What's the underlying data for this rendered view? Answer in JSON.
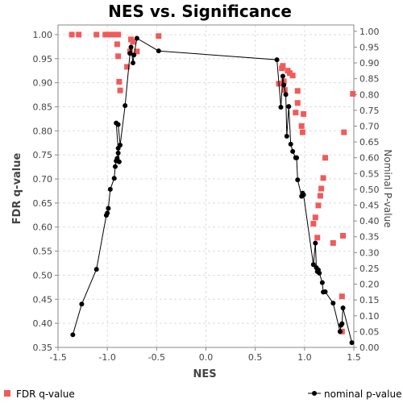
{
  "chart_data": {
    "type": "scatter",
    "title": "NES vs. Significance",
    "xlabel": "NES",
    "ylabel": "FDR q-value",
    "y2label": "Nominal P-value",
    "xlim": [
      -1.5,
      1.5
    ],
    "ylim": [
      0.35,
      1.02
    ],
    "y2lim": [
      0.0,
      1.02
    ],
    "xticks": [
      "-1.5",
      "-1.0",
      "-0.5",
      "0.0",
      "0.5",
      "1.0",
      "1.5"
    ],
    "yticks": [
      "0.35",
      "0.40",
      "0.45",
      "0.50",
      "0.55",
      "0.60",
      "0.65",
      "0.70",
      "0.75",
      "0.80",
      "0.85",
      "0.90",
      "0.95",
      "1.00"
    ],
    "y2ticks": [
      "0.00",
      "0.05",
      "0.10",
      "0.15",
      "0.20",
      "0.25",
      "0.30",
      "0.35",
      "0.40",
      "0.45",
      "0.50",
      "0.55",
      "0.60",
      "0.65",
      "0.70",
      "0.75",
      "0.80",
      "0.85",
      "0.90",
      "0.95",
      "1.00"
    ],
    "grid": true,
    "legend_position": "bottom",
    "series": [
      {
        "name": "FDR q-value",
        "axis": "left",
        "style": "markers",
        "color": "#f15a5a",
        "points": [
          {
            "x": -1.36,
            "y": 1.0
          },
          {
            "x": -1.29,
            "y": 1.0
          },
          {
            "x": -1.11,
            "y": 1.0
          },
          {
            "x": -1.02,
            "y": 1.0
          },
          {
            "x": -0.99,
            "y": 1.0
          },
          {
            "x": -0.97,
            "y": 1.0
          },
          {
            "x": -0.93,
            "y": 1.0
          },
          {
            "x": -0.91,
            "y": 1.0
          },
          {
            "x": -0.89,
            "y": 1.0
          },
          {
            "x": -0.9,
            "y": 0.98
          },
          {
            "x": -0.89,
            "y": 0.955
          },
          {
            "x": -0.88,
            "y": 0.902
          },
          {
            "x": -0.87,
            "y": 0.884
          },
          {
            "x": -0.8,
            "y": 0.933
          },
          {
            "x": -0.77,
            "y": 0.965
          },
          {
            "x": -0.76,
            "y": 0.99
          },
          {
            "x": -0.74,
            "y": 0.985
          },
          {
            "x": -0.7,
            "y": 0.965
          },
          {
            "x": -0.48,
            "y": 0.997
          },
          {
            "x": 0.74,
            "y": 0.898
          },
          {
            "x": 0.77,
            "y": 0.93
          },
          {
            "x": 0.78,
            "y": 0.935
          },
          {
            "x": 0.79,
            "y": 0.903
          },
          {
            "x": 0.8,
            "y": 0.885
          },
          {
            "x": 0.83,
            "y": 0.925
          },
          {
            "x": 0.85,
            "y": 0.92
          },
          {
            "x": 0.88,
            "y": 0.915
          },
          {
            "x": 0.91,
            "y": 0.838
          },
          {
            "x": 0.93,
            "y": 0.883
          },
          {
            "x": 0.93,
            "y": 0.858
          },
          {
            "x": 0.97,
            "y": 0.81
          },
          {
            "x": 0.98,
            "y": 0.797
          },
          {
            "x": 0.99,
            "y": 0.835
          },
          {
            "x": 1.09,
            "y": 0.607
          },
          {
            "x": 1.11,
            "y": 0.62
          },
          {
            "x": 1.13,
            "y": 0.578
          },
          {
            "x": 1.14,
            "y": 0.645
          },
          {
            "x": 1.16,
            "y": 0.665
          },
          {
            "x": 1.17,
            "y": 0.68
          },
          {
            "x": 1.19,
            "y": 0.702
          },
          {
            "x": 1.21,
            "y": 0.744
          },
          {
            "x": 1.29,
            "y": 0.567
          },
          {
            "x": 1.38,
            "y": 0.456
          },
          {
            "x": 1.38,
            "y": 0.383
          },
          {
            "x": 1.39,
            "y": 0.582
          },
          {
            "x": 1.4,
            "y": 0.797
          },
          {
            "x": 1.49,
            "y": 0.877
          }
        ]
      },
      {
        "name": "nominal p-value",
        "axis": "right",
        "style": "line-markers",
        "color": "#000000",
        "points": [
          {
            "x": -1.35,
            "y": 0.04
          },
          {
            "x": -1.26,
            "y": 0.137
          },
          {
            "x": -1.11,
            "y": 0.247
          },
          {
            "x": -1.01,
            "y": 0.418
          },
          {
            "x": -1.0,
            "y": 0.425
          },
          {
            "x": -0.99,
            "y": 0.44
          },
          {
            "x": -0.97,
            "y": 0.5
          },
          {
            "x": -0.93,
            "y": 0.535
          },
          {
            "x": -0.92,
            "y": 0.572
          },
          {
            "x": -0.91,
            "y": 0.59
          },
          {
            "x": -0.9,
            "y": 0.598
          },
          {
            "x": -0.89,
            "y": 0.615
          },
          {
            "x": -0.89,
            "y": 0.63
          },
          {
            "x": -0.88,
            "y": 0.587
          },
          {
            "x": -0.91,
            "y": 0.71
          },
          {
            "x": -0.89,
            "y": 0.705
          },
          {
            "x": -0.87,
            "y": 0.64
          },
          {
            "x": -0.82,
            "y": 0.765
          },
          {
            "x": -0.77,
            "y": 0.93
          },
          {
            "x": -0.76,
            "y": 0.95
          },
          {
            "x": -0.74,
            "y": 0.9
          },
          {
            "x": -0.73,
            "y": 0.925
          },
          {
            "x": -0.7,
            "y": 0.978
          },
          {
            "x": -0.48,
            "y": 0.938
          },
          {
            "x": 0.72,
            "y": 0.91
          },
          {
            "x": 0.76,
            "y": 0.76
          },
          {
            "x": 0.78,
            "y": 0.858
          },
          {
            "x": 0.79,
            "y": 0.83
          },
          {
            "x": 0.81,
            "y": 0.8
          },
          {
            "x": 0.82,
            "y": 0.668
          },
          {
            "x": 0.84,
            "y": 0.762
          },
          {
            "x": 0.86,
            "y": 0.643
          },
          {
            "x": 0.88,
            "y": 0.62
          },
          {
            "x": 0.91,
            "y": 0.6
          },
          {
            "x": 0.92,
            "y": 0.6
          },
          {
            "x": 0.93,
            "y": 0.53
          },
          {
            "x": 0.97,
            "y": 0.478
          },
          {
            "x": 0.98,
            "y": 0.488
          },
          {
            "x": 0.99,
            "y": 0.483
          },
          {
            "x": 1.09,
            "y": 0.262
          },
          {
            "x": 1.11,
            "y": 0.33
          },
          {
            "x": 1.12,
            "y": 0.252
          },
          {
            "x": 1.13,
            "y": 0.24
          },
          {
            "x": 1.14,
            "y": 0.245
          },
          {
            "x": 1.15,
            "y": 0.235
          },
          {
            "x": 1.18,
            "y": 0.205
          },
          {
            "x": 1.19,
            "y": 0.175
          },
          {
            "x": 1.21,
            "y": 0.176
          },
          {
            "x": 1.29,
            "y": 0.14
          },
          {
            "x": 1.36,
            "y": 0.05
          },
          {
            "x": 1.37,
            "y": 0.07
          },
          {
            "x": 1.38,
            "y": 0.075
          },
          {
            "x": 1.39,
            "y": 0.125
          },
          {
            "x": 1.48,
            "y": 0.015
          }
        ]
      }
    ]
  }
}
